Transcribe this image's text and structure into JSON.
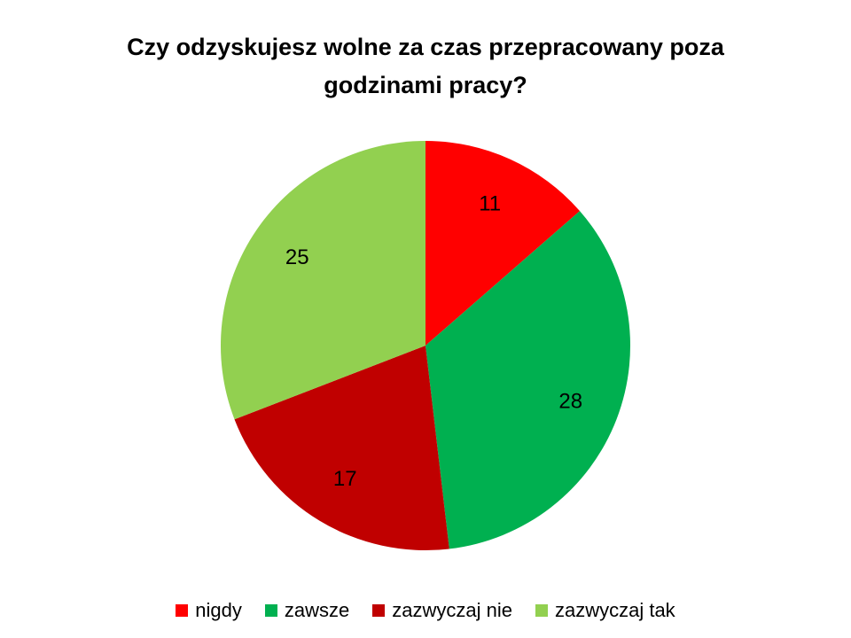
{
  "chart_data": {
    "type": "pie",
    "title_lines": [
      "Czy odzyskujesz wolne za czas przepracowany poza",
      "godzinami pracy?"
    ],
    "categories": [
      "nigdy",
      "zawsze",
      "zazwyczaj nie",
      "zazwyczaj tak"
    ],
    "values": [
      11,
      28,
      17,
      25
    ],
    "data_labels": [
      "11",
      "28",
      "17",
      "25"
    ],
    "colors": [
      "#FF0000",
      "#00B050",
      "#C00000",
      "#92D050"
    ],
    "start_angle": "top, clockwise",
    "legend_position": "bottom"
  }
}
